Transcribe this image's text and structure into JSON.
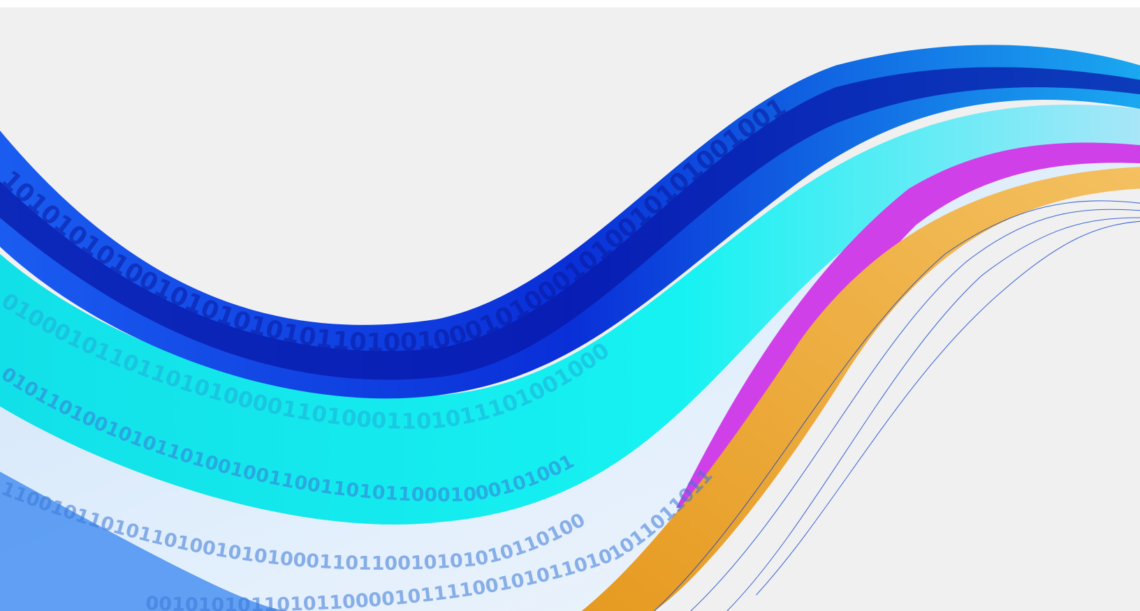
{
  "image": {
    "binary_text": [
      "10101010100101010101011010010001010001010010101001001",
      "0100010110110101000011010001101011101001000",
      "0101101001010110100100110011010110001000101001",
      "1100101101011010010101000110110010101010110100",
      "0010101011010110000101111001010110101011011011"
    ]
  }
}
